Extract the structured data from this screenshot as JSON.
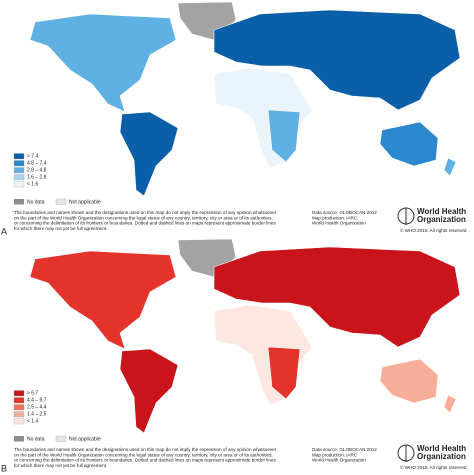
{
  "panels": [
    {
      "label": "A",
      "legend": [
        {
          "label": "> 7.4",
          "color": "#0b5ea8"
        },
        {
          "label": "4.8 – 7.4",
          "color": "#2b88cc"
        },
        {
          "label": "2.8 – 4.8",
          "color": "#5fb1e3"
        },
        {
          "label": "1.6 – 2.8",
          "color": "#a9d7f2"
        },
        {
          "label": "< 1.6",
          "color": "#eaf4fb"
        }
      ],
      "no_data": "No data",
      "not_applicable": "Not applicable",
      "disclaimer": [
        "The boundaries and names shown and the designations used on this map do not imply the expression of any opinion whatsoever",
        "on the part of the World Health Organization concerning the legal status of any country, territory, city or area or of its authorities,",
        "or concerning the delimitation of its frontiers or boundaries. Dotted and dashed lines on maps represent approximate border lines",
        "for which there may not yet be full agreement."
      ],
      "source": [
        "Data source: GLOBOCAN 2012",
        "Map production: IARC",
        "World Health Organization"
      ],
      "logo": {
        "name": [
          "World Health",
          "Organization"
        ],
        "copyright": "© WHO 2015. All rights reserved"
      }
    },
    {
      "label": "B",
      "legend": [
        {
          "label": "> 6.7",
          "color": "#c8141a"
        },
        {
          "label": "4.4 – 6.7",
          "color": "#e4332b"
        },
        {
          "label": "2.5 – 4.4",
          "color": "#f0705a"
        },
        {
          "label": "1.4 – 2.5",
          "color": "#f7ad98"
        },
        {
          "label": "< 1.4",
          "color": "#fde7df"
        }
      ],
      "no_data": "No data",
      "not_applicable": "Not applicable",
      "disclaimer": [
        "The boundaries and names shown and the designations used on this map do not imply the expression of any opinion whatsoever",
        "on the part of the World Health Organization concerning the legal status of any country, territory, city or area or of its authorities,",
        "or concerning the delimitation of its frontiers or boundaries. Dotted and dashed lines on maps represent approximate border lines",
        "for which there may not yet be full agreement."
      ],
      "source": [
        "Data source: GLOBOCAN 2012",
        "Map production: IARC",
        "World Health Organization"
      ],
      "logo": {
        "name": [
          "World Health",
          "Organization"
        ],
        "copyright": "© WHO 2015. All rights reserved"
      }
    }
  ]
}
